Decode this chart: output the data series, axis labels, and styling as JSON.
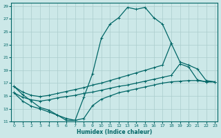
{
  "bg_color": "#cce8e8",
  "grid_color": "#aacccc",
  "line_color": "#006666",
  "xlabel": "Humidex (Indice chaleur)",
  "xlim": [
    -0.3,
    23.3
  ],
  "ylim": [
    11,
    29.5
  ],
  "xticks": [
    0,
    1,
    2,
    3,
    4,
    5,
    6,
    7,
    8,
    9,
    10,
    11,
    12,
    13,
    14,
    15,
    16,
    17,
    18,
    19,
    20,
    21,
    22,
    23
  ],
  "yticks": [
    11,
    13,
    15,
    17,
    19,
    21,
    23,
    25,
    27,
    29
  ],
  "curve1_x": [
    0,
    1,
    2,
    3,
    4,
    5,
    6,
    7,
    8,
    9,
    10,
    11,
    12,
    13,
    14,
    15,
    16,
    17,
    18
  ],
  "curve1_y": [
    16.5,
    15.2,
    14.2,
    13.2,
    12.8,
    12.0,
    11.2,
    11.2,
    14.8,
    18.5,
    24.0,
    26.2,
    27.2,
    28.8,
    28.5,
    28.8,
    27.2,
    26.2,
    23.2
  ],
  "curve2_x": [
    0,
    1,
    2,
    3,
    4,
    5,
    6,
    7,
    8,
    9,
    10,
    11,
    12,
    13,
    14,
    15,
    16,
    17,
    18,
    19,
    20,
    21,
    22,
    23
  ],
  "curve2_y": [
    16.5,
    15.6,
    15.1,
    14.9,
    15.1,
    15.4,
    15.7,
    16.0,
    16.3,
    16.7,
    17.0,
    17.4,
    17.8,
    18.2,
    18.6,
    19.0,
    19.4,
    19.8,
    23.2,
    20.3,
    19.8,
    19.2,
    17.4,
    17.2
  ],
  "curve3_x": [
    0,
    1,
    2,
    3,
    4,
    5,
    6,
    7,
    8,
    9,
    10,
    11,
    12,
    13,
    14,
    15,
    16,
    17,
    18,
    19,
    20,
    21,
    22,
    23
  ],
  "curve3_y": [
    15.5,
    14.8,
    14.4,
    14.2,
    14.4,
    14.7,
    14.9,
    15.1,
    15.4,
    15.6,
    15.9,
    16.2,
    16.5,
    16.7,
    17.0,
    17.3,
    17.6,
    17.9,
    18.2,
    20.0,
    19.5,
    17.5,
    17.2,
    17.2
  ],
  "curve4_x": [
    0,
    1,
    2,
    3,
    4,
    5,
    6,
    7,
    8,
    9,
    10,
    11,
    12,
    13,
    14,
    15,
    16,
    17,
    18,
    19,
    20,
    21,
    22,
    23
  ],
  "curve4_y": [
    15.5,
    14.2,
    13.4,
    13.0,
    12.5,
    12.0,
    11.5,
    11.2,
    11.5,
    13.5,
    14.5,
    15.0,
    15.5,
    15.8,
    16.1,
    16.4,
    16.7,
    17.0,
    17.2,
    17.3,
    17.4,
    17.4,
    17.2,
    17.2
  ]
}
